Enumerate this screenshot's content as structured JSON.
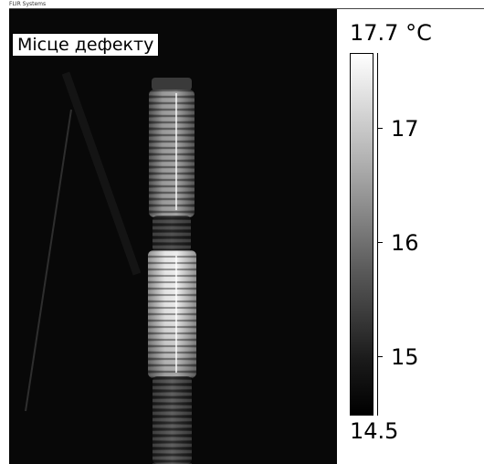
{
  "brand": "FLIR Systems",
  "overlay_label": "Місце дефекту",
  "scale": {
    "max_label": "17.7 °C",
    "min_label": "14.5",
    "max_value": 17.7,
    "min_value": 14.5,
    "ticks": [
      {
        "value": 17,
        "label": "17"
      },
      {
        "value": 16,
        "label": "16"
      },
      {
        "value": 15,
        "label": "15"
      }
    ],
    "palette": "grayscale"
  },
  "colors": {
    "background": "#080808",
    "hot": "#ffffff",
    "cold": "#000000"
  }
}
